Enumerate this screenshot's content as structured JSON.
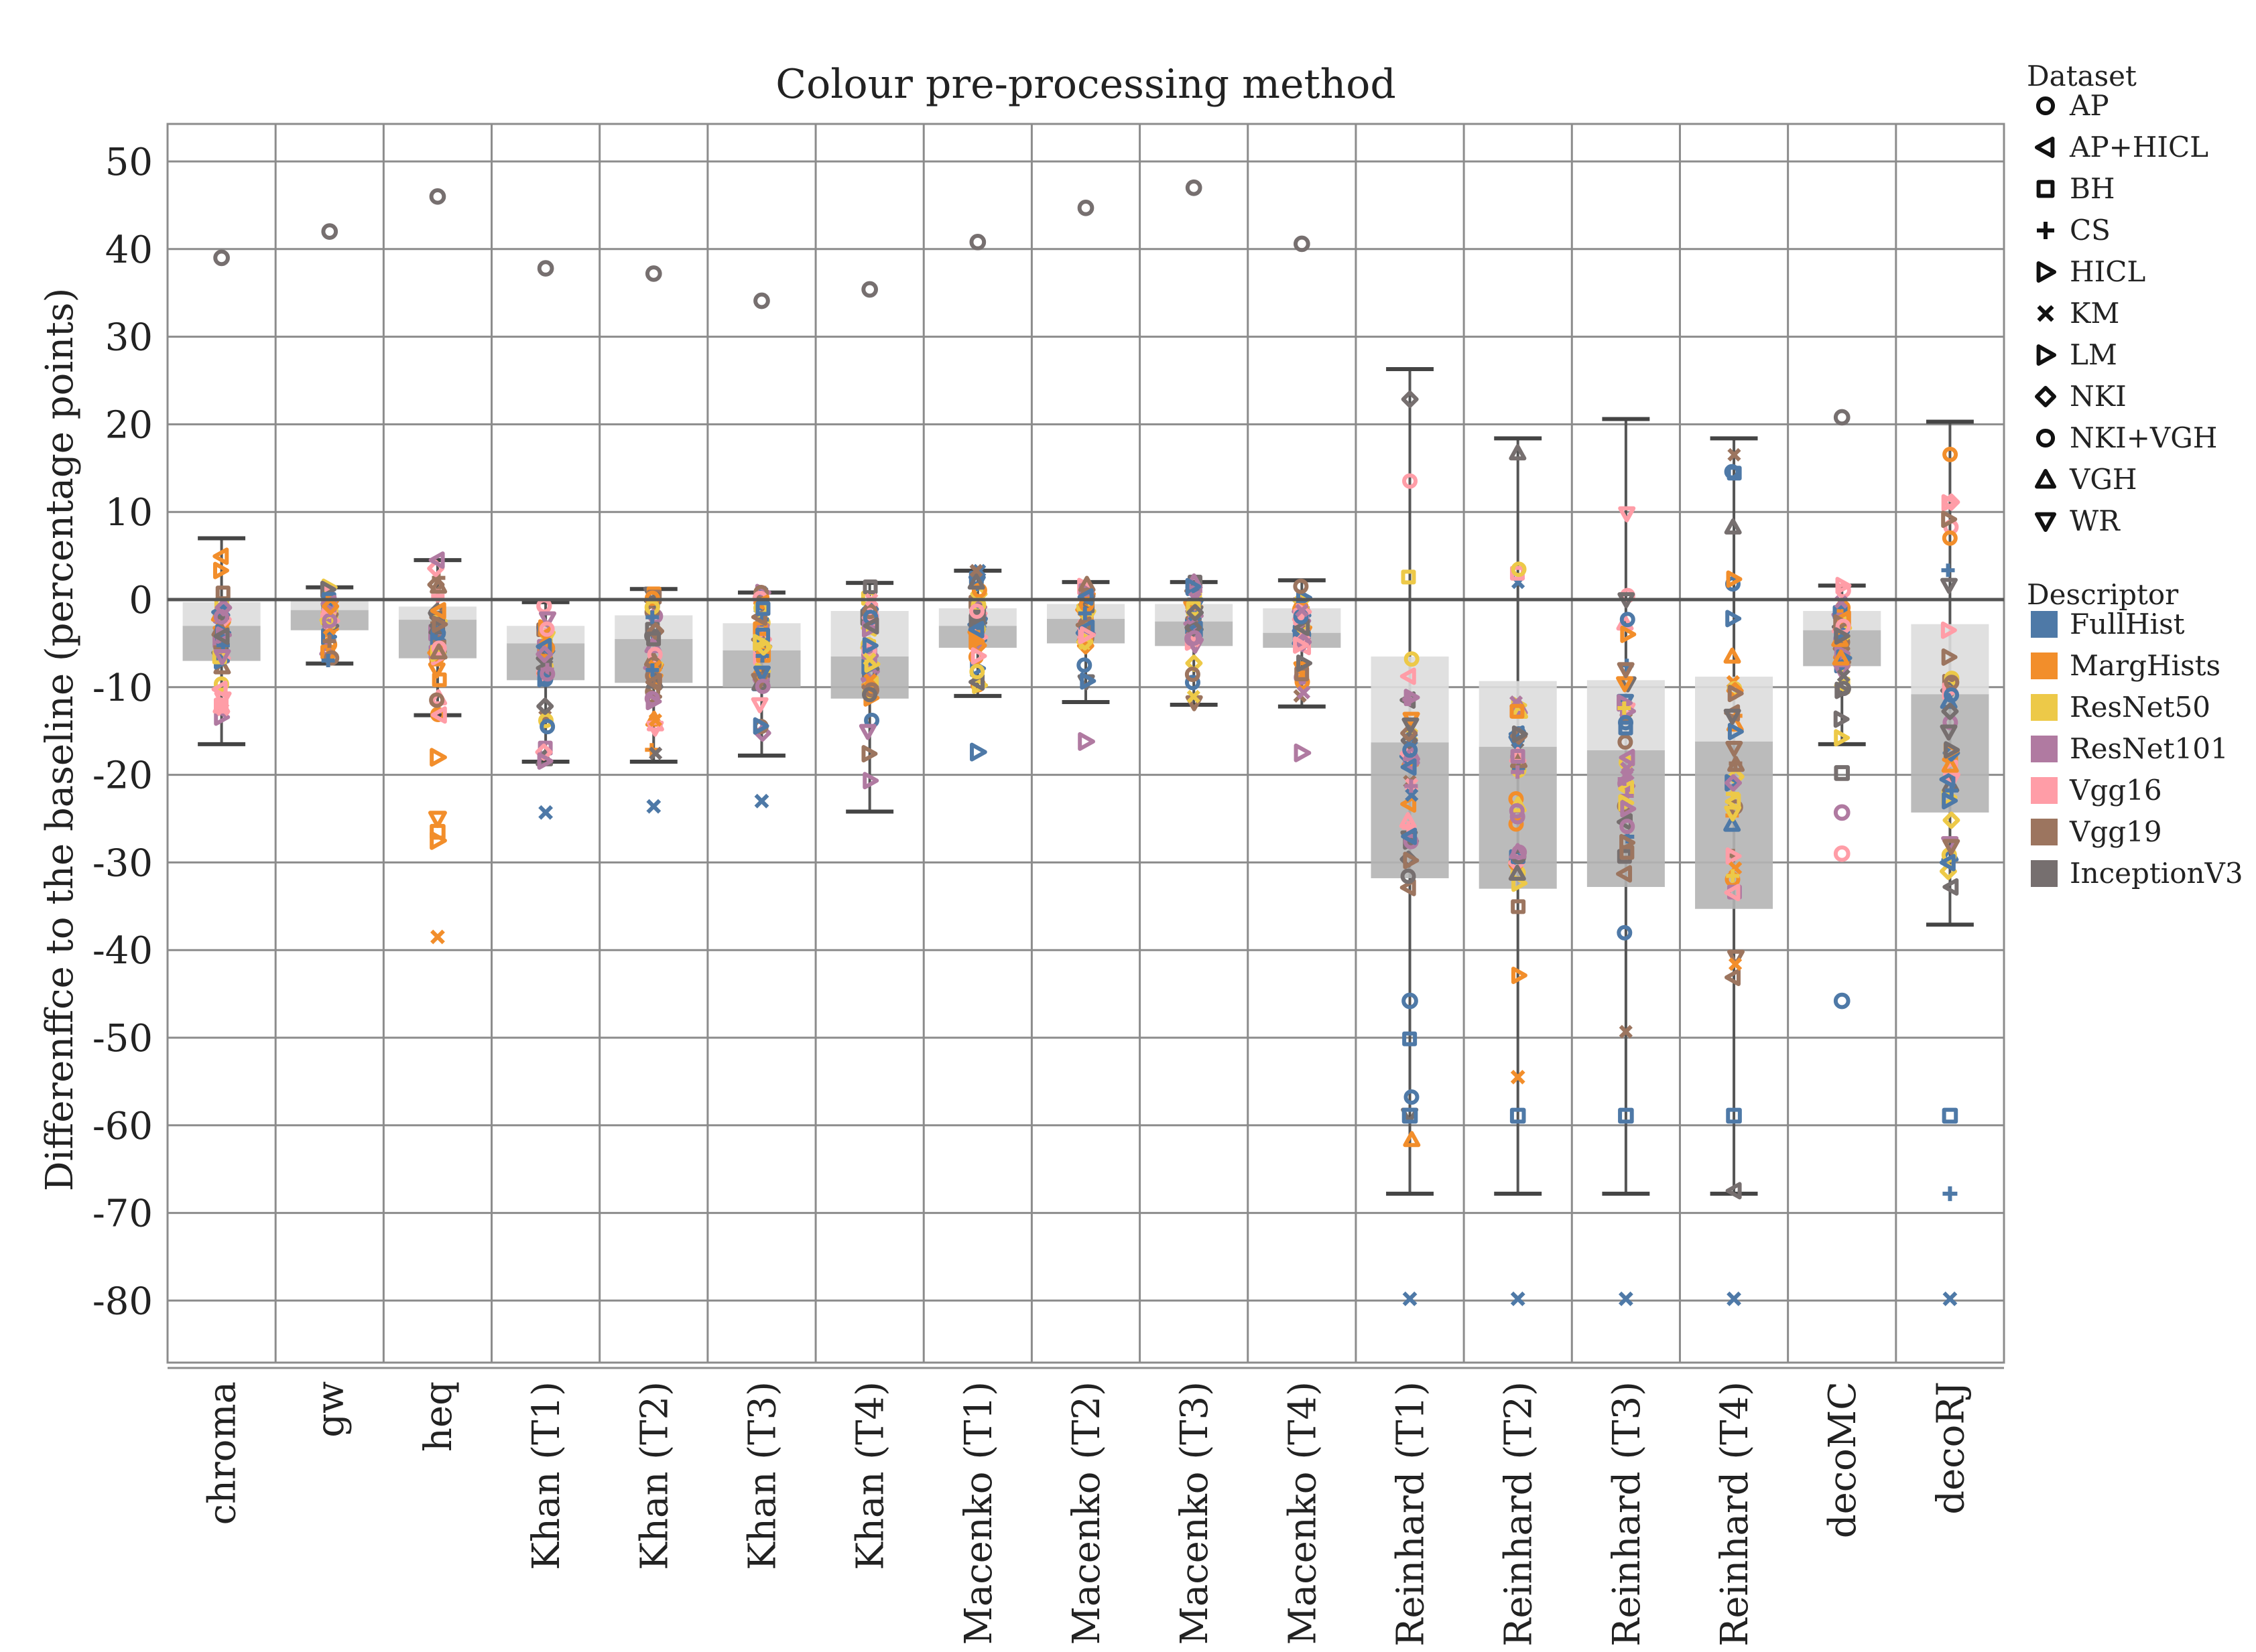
{
  "chart_data": {
    "type": "box",
    "title": "Colour pre-processing method",
    "ylabel": "Differenffce to the baseline (percentage points)",
    "xlabel": "",
    "ylim": [
      -87,
      54
    ],
    "yticks": [
      50,
      40,
      30,
      20,
      10,
      0,
      -10,
      -20,
      -30,
      -40,
      -50,
      -60,
      -70,
      -80
    ],
    "grid": true,
    "reference_line": 0,
    "categories": [
      "chroma",
      "gw",
      "heq",
      "Khan (T1)",
      "Khan (T2)",
      "Khan (T3)",
      "Khan (T4)",
      "Macenko (T1)",
      "Macenko (T2)",
      "Macenko (T3)",
      "Macenko (T4)",
      "Reinhard (T1)",
      "Reinhard (T2)",
      "Reinhard (T3)",
      "Reinhard (T4)",
      "decoMC",
      "decoRJ"
    ],
    "boxes": [
      {
        "whisker_high": 7,
        "q3": -0.3,
        "median": -3,
        "q1": -7,
        "whisker_low": -16.5
      },
      {
        "whisker_high": 1.4,
        "q3": 0,
        "median": -1.2,
        "q1": -3.5,
        "whisker_low": -7.3
      },
      {
        "whisker_high": 4.5,
        "q3": -0.8,
        "median": -2.3,
        "q1": -6.7,
        "whisker_low": -13.2
      },
      {
        "whisker_high": -0.3,
        "q3": -3,
        "median": -5,
        "q1": -9.2,
        "whisker_low": -18.5
      },
      {
        "whisker_high": 1.2,
        "q3": -1.8,
        "median": -4.5,
        "q1": -9.5,
        "whisker_low": -18.5
      },
      {
        "whisker_high": 0.8,
        "q3": -2.7,
        "median": -5.8,
        "q1": -10,
        "whisker_low": -17.8
      },
      {
        "whisker_high": 1.9,
        "q3": -1.3,
        "median": -6.5,
        "q1": -11.3,
        "whisker_low": -24.2
      },
      {
        "whisker_high": 3.3,
        "q3": -1,
        "median": -3,
        "q1": -5.5,
        "whisker_low": -11
      },
      {
        "whisker_high": 2,
        "q3": -0.5,
        "median": -2.2,
        "q1": -5,
        "whisker_low": -11.7
      },
      {
        "whisker_high": 2,
        "q3": -0.5,
        "median": -2.5,
        "q1": -5.3,
        "whisker_low": -12
      },
      {
        "whisker_high": 2.2,
        "q3": -1,
        "median": -3.8,
        "q1": -5.5,
        "whisker_low": -12.2
      },
      {
        "whisker_high": 26.3,
        "q3": -6.5,
        "median": -16.3,
        "q1": -31.8,
        "whisker_low": -67.8
      },
      {
        "whisker_high": 18.4,
        "q3": -9.3,
        "median": -16.8,
        "q1": -33,
        "whisker_low": -67.8
      },
      {
        "whisker_high": 20.6,
        "q3": -9.2,
        "median": -17.2,
        "q1": -32.8,
        "whisker_low": -67.8
      },
      {
        "whisker_high": 18.4,
        "q3": -8.8,
        "median": -16.2,
        "q1": -35.3,
        "whisker_low": -67.8
      },
      {
        "whisker_high": 1.6,
        "q3": -1.3,
        "median": -3.5,
        "q1": -7.6,
        "whisker_low": -16.5
      },
      {
        "whisker_high": 20.3,
        "q3": -2.8,
        "median": -10.8,
        "q1": -24.3,
        "whisker_low": -37.1
      }
    ],
    "notable_points": [
      {
        "category": "chroma",
        "dataset": "NKI+VGH",
        "descriptor": "InceptionV3",
        "value": 39
      },
      {
        "category": "gw",
        "dataset": "NKI+VGH",
        "descriptor": "InceptionV3",
        "value": 42
      },
      {
        "category": "heq",
        "dataset": "NKI+VGH",
        "descriptor": "InceptionV3",
        "value": 46
      },
      {
        "category": "heq",
        "dataset": "LM",
        "descriptor": "MargHists",
        "value": -18
      },
      {
        "category": "heq",
        "dataset": "WR",
        "descriptor": "MargHists",
        "value": -25
      },
      {
        "category": "heq",
        "dataset": "BH",
        "descriptor": "MargHists",
        "value": -26.5
      },
      {
        "category": "heq",
        "dataset": "HICL",
        "descriptor": "MargHists",
        "value": -27.5
      },
      {
        "category": "heq",
        "dataset": "KM",
        "descriptor": "MargHists",
        "value": -38.5
      },
      {
        "category": "Khan (T1)",
        "dataset": "NKI+VGH",
        "descriptor": "InceptionV3",
        "value": 37.8
      },
      {
        "category": "Khan (T1)",
        "dataset": "KM",
        "descriptor": "FullHist",
        "value": -24.3
      },
      {
        "category": "Khan (T2)",
        "dataset": "NKI+VGH",
        "descriptor": "InceptionV3",
        "value": 37.2
      },
      {
        "category": "Khan (T2)",
        "dataset": "KM",
        "descriptor": "FullHist",
        "value": -23.6
      },
      {
        "category": "Khan (T3)",
        "dataset": "NKI+VGH",
        "descriptor": "InceptionV3",
        "value": 34.1
      },
      {
        "category": "Khan (T3)",
        "dataset": "KM",
        "descriptor": "FullHist",
        "value": -23
      },
      {
        "category": "Khan (T4)",
        "dataset": "NKI+VGH",
        "descriptor": "InceptionV3",
        "value": 35.4
      },
      {
        "category": "Macenko (T1)",
        "dataset": "NKI+VGH",
        "descriptor": "InceptionV3",
        "value": 40.8
      },
      {
        "category": "Macenko (T1)",
        "dataset": "HICL",
        "descriptor": "FullHist",
        "value": -17.4
      },
      {
        "category": "Macenko (T2)",
        "dataset": "NKI+VGH",
        "descriptor": "InceptionV3",
        "value": 44.7
      },
      {
        "category": "Macenko (T2)",
        "dataset": "HICL",
        "descriptor": "ResNet101",
        "value": -16.2
      },
      {
        "category": "Macenko (T3)",
        "dataset": "NKI+VGH",
        "descriptor": "InceptionV3",
        "value": 47
      },
      {
        "category": "Macenko (T4)",
        "dataset": "NKI+VGH",
        "descriptor": "InceptionV3",
        "value": 40.6
      },
      {
        "category": "Macenko (T4)",
        "dataset": "HICL",
        "descriptor": "ResNet101",
        "value": -17.5
      },
      {
        "category": "Reinhard (T1)",
        "dataset": "AP",
        "descriptor": "FullHist",
        "value": -45.8
      },
      {
        "category": "Reinhard (T1)",
        "dataset": "BH",
        "descriptor": "FullHist",
        "value": -58.9
      },
      {
        "category": "Reinhard (T1)",
        "dataset": "KM",
        "descriptor": "FullHist",
        "value": -79.8
      },
      {
        "category": "Reinhard (T2)",
        "dataset": "KM",
        "descriptor": "MargHists",
        "value": -54.5
      },
      {
        "category": "Reinhard (T2)",
        "dataset": "BH",
        "descriptor": "FullHist",
        "value": -58.9
      },
      {
        "category": "Reinhard (T2)",
        "dataset": "KM",
        "descriptor": "FullHist",
        "value": -79.8
      },
      {
        "category": "Reinhard (T3)",
        "dataset": "BH",
        "descriptor": "FullHist",
        "value": -58.9
      },
      {
        "category": "Reinhard (T3)",
        "dataset": "KM",
        "descriptor": "FullHist",
        "value": -79.8
      },
      {
        "category": "Reinhard (T4)",
        "dataset": "BH",
        "descriptor": "FullHist",
        "value": -58.9
      },
      {
        "category": "Reinhard (T4)",
        "dataset": "KM",
        "descriptor": "FullHist",
        "value": -79.8
      },
      {
        "category": "decoMC",
        "dataset": "NKI+VGH",
        "descriptor": "InceptionV3",
        "value": 20.8
      },
      {
        "category": "decoMC",
        "dataset": "BH",
        "descriptor": "InceptionV3",
        "value": -19.8
      },
      {
        "category": "decoMC",
        "dataset": "AP",
        "descriptor": "ResNet101",
        "value": -24.3
      },
      {
        "category": "decoMC",
        "dataset": "AP",
        "descriptor": "Vgg16",
        "value": -29
      },
      {
        "category": "decoMC",
        "dataset": "AP",
        "descriptor": "FullHist",
        "value": -45.8
      },
      {
        "category": "decoRJ",
        "dataset": "BH",
        "descriptor": "FullHist",
        "value": -58.9
      },
      {
        "category": "decoRJ",
        "dataset": "CS",
        "descriptor": "FullHist",
        "value": -67.8
      },
      {
        "category": "decoRJ",
        "dataset": "KM",
        "descriptor": "FullHist",
        "value": -79.8
      }
    ],
    "legend": {
      "position": "right",
      "dataset_title": "Dataset",
      "datasets": [
        {
          "label": "AP",
          "marker": "circle"
        },
        {
          "label": "AP+HICL",
          "marker": "triangle-left"
        },
        {
          "label": "BH",
          "marker": "square"
        },
        {
          "label": "CS",
          "marker": "plus"
        },
        {
          "label": "HICL",
          "marker": "triangle-right"
        },
        {
          "label": "KM",
          "marker": "x"
        },
        {
          "label": "LM",
          "marker": "triangle-right"
        },
        {
          "label": "NKI",
          "marker": "diamond"
        },
        {
          "label": "NKI+VGH",
          "marker": "circle"
        },
        {
          "label": "VGH",
          "marker": "triangle-up"
        },
        {
          "label": "WR",
          "marker": "triangle-down"
        }
      ],
      "descriptor_title": "Descriptor",
      "descriptors": [
        {
          "label": "FullHist",
          "color": "#4e79a7"
        },
        {
          "label": "MargHists",
          "color": "#f28e2b"
        },
        {
          "label": "ResNet50",
          "color": "#edc948"
        },
        {
          "label": "ResNet101",
          "color": "#b07aa1"
        },
        {
          "label": "Vgg16",
          "color": "#ff9da7"
        },
        {
          "label": "Vgg19",
          "color": "#9c755f"
        },
        {
          "label": "InceptionV3",
          "color": "#766f6f"
        }
      ]
    }
  }
}
